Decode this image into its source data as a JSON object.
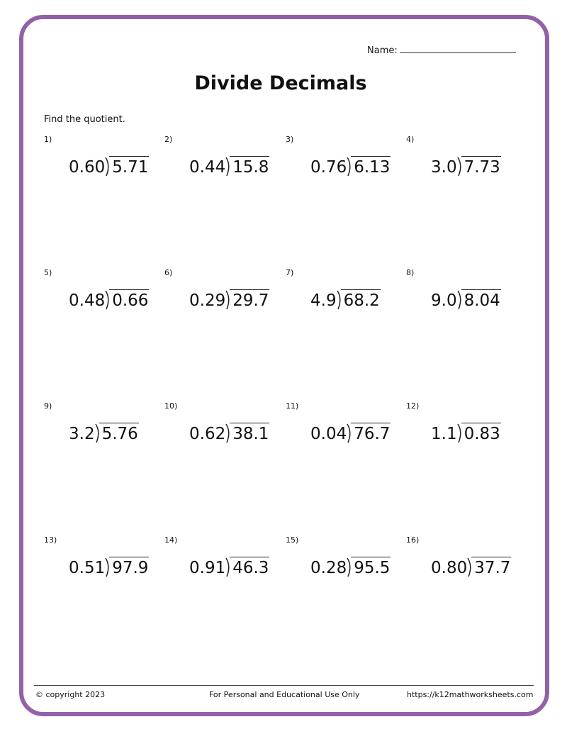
{
  "header": {
    "name_label": "Name:",
    "title": "Divide Decimals",
    "instructions": "Find the quotient."
  },
  "problems": [
    {
      "n": "1)",
      "divisor": "0.60",
      "dividend": "5.71"
    },
    {
      "n": "2)",
      "divisor": "0.44",
      "dividend": "15.8"
    },
    {
      "n": "3)",
      "divisor": "0.76",
      "dividend": "6.13"
    },
    {
      "n": "4)",
      "divisor": "3.0",
      "dividend": "7.73"
    },
    {
      "n": "5)",
      "divisor": "0.48",
      "dividend": "0.66"
    },
    {
      "n": "6)",
      "divisor": "0.29",
      "dividend": "29.7"
    },
    {
      "n": "7)",
      "divisor": "4.9",
      "dividend": "68.2"
    },
    {
      "n": "8)",
      "divisor": "9.0",
      "dividend": "8.04"
    },
    {
      "n": "9)",
      "divisor": "3.2",
      "dividend": "5.76"
    },
    {
      "n": "10)",
      "divisor": "0.62",
      "dividend": "38.1"
    },
    {
      "n": "11)",
      "divisor": "0.04",
      "dividend": "76.7"
    },
    {
      "n": "12)",
      "divisor": "1.1",
      "dividend": "0.83"
    },
    {
      "n": "13)",
      "divisor": "0.51",
      "dividend": "97.9"
    },
    {
      "n": "14)",
      "divisor": "0.91",
      "dividend": "46.3"
    },
    {
      "n": "15)",
      "divisor": "0.28",
      "dividend": "95.5"
    },
    {
      "n": "16)",
      "divisor": "0.80",
      "dividend": "37.7"
    }
  ],
  "footer": {
    "copyright": "© copyright 2023",
    "notice": "For Personal and Educational Use Only",
    "url": "https://k12mathworksheets.com"
  },
  "colors": {
    "border": "#9361a8"
  }
}
